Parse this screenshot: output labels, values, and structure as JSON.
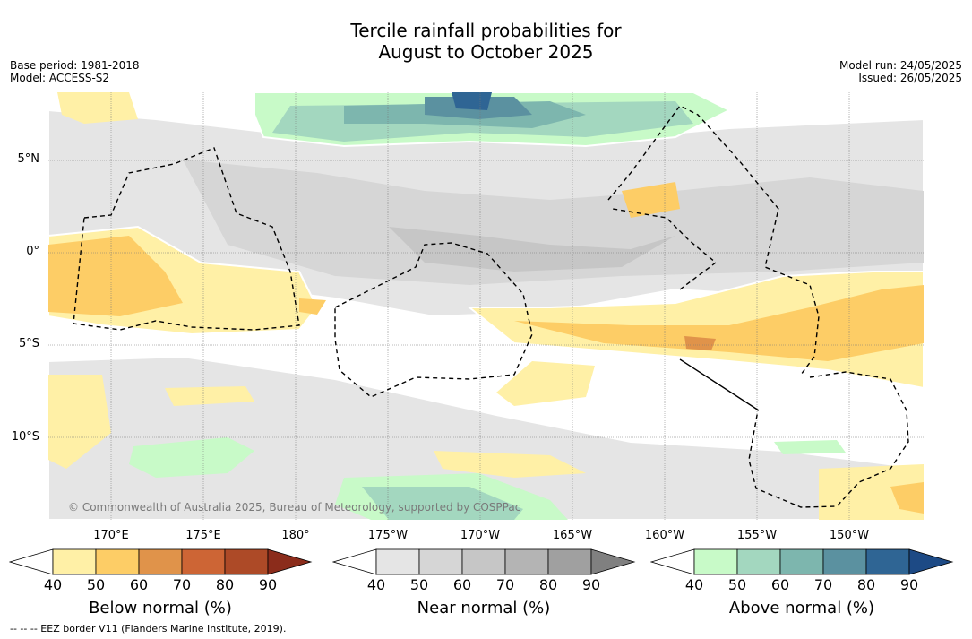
{
  "title_line1": "Tercile rainfall probabilities for",
  "title_line2": "August to October 2025",
  "meta_left": [
    "Base period: 1981-2018",
    "Model: ACCESS-S2"
  ],
  "meta_right": [
    "Model run: 24/05/2025",
    "Issued: 26/05/2025"
  ],
  "lat_ticks": [
    "5°N",
    "0°",
    "5°S",
    "10°S"
  ],
  "lon_ticks": [
    "170°E",
    "175°E",
    "180°",
    "175°W",
    "170°W",
    "165°W",
    "160°W",
    "155°W",
    "150°W"
  ],
  "copyright": "© Commonwealth of Australia 2025, Bureau of Meteorology, supported by COSPPac",
  "footer": "-- -- -- EEZ border V11 (Flanders Marine Institute, 2019).",
  "colorbars": [
    {
      "label": "Below normal (%)",
      "ticks": [
        "40",
        "50",
        "60",
        "70",
        "80",
        "90"
      ],
      "colors": [
        "#fff0a6",
        "#fdcd66",
        "#e0934a",
        "#cd6535",
        "#ad4a27",
        "#8b2c1b"
      ]
    },
    {
      "label": "Near normal (%)",
      "ticks": [
        "40",
        "50",
        "60",
        "70",
        "80",
        "90"
      ],
      "colors": [
        "#e5e5e5",
        "#d6d6d6",
        "#c6c6c6",
        "#b4b4b4",
        "#a0a0a0",
        "#808080"
      ]
    },
    {
      "label": "Above normal (%)",
      "ticks": [
        "40",
        "50",
        "60",
        "70",
        "80",
        "90"
      ],
      "colors": [
        "#c8fac8",
        "#a3d7bf",
        "#7db6ae",
        "#5b91a0",
        "#2f6594",
        "#1d4a85"
      ]
    }
  ]
}
